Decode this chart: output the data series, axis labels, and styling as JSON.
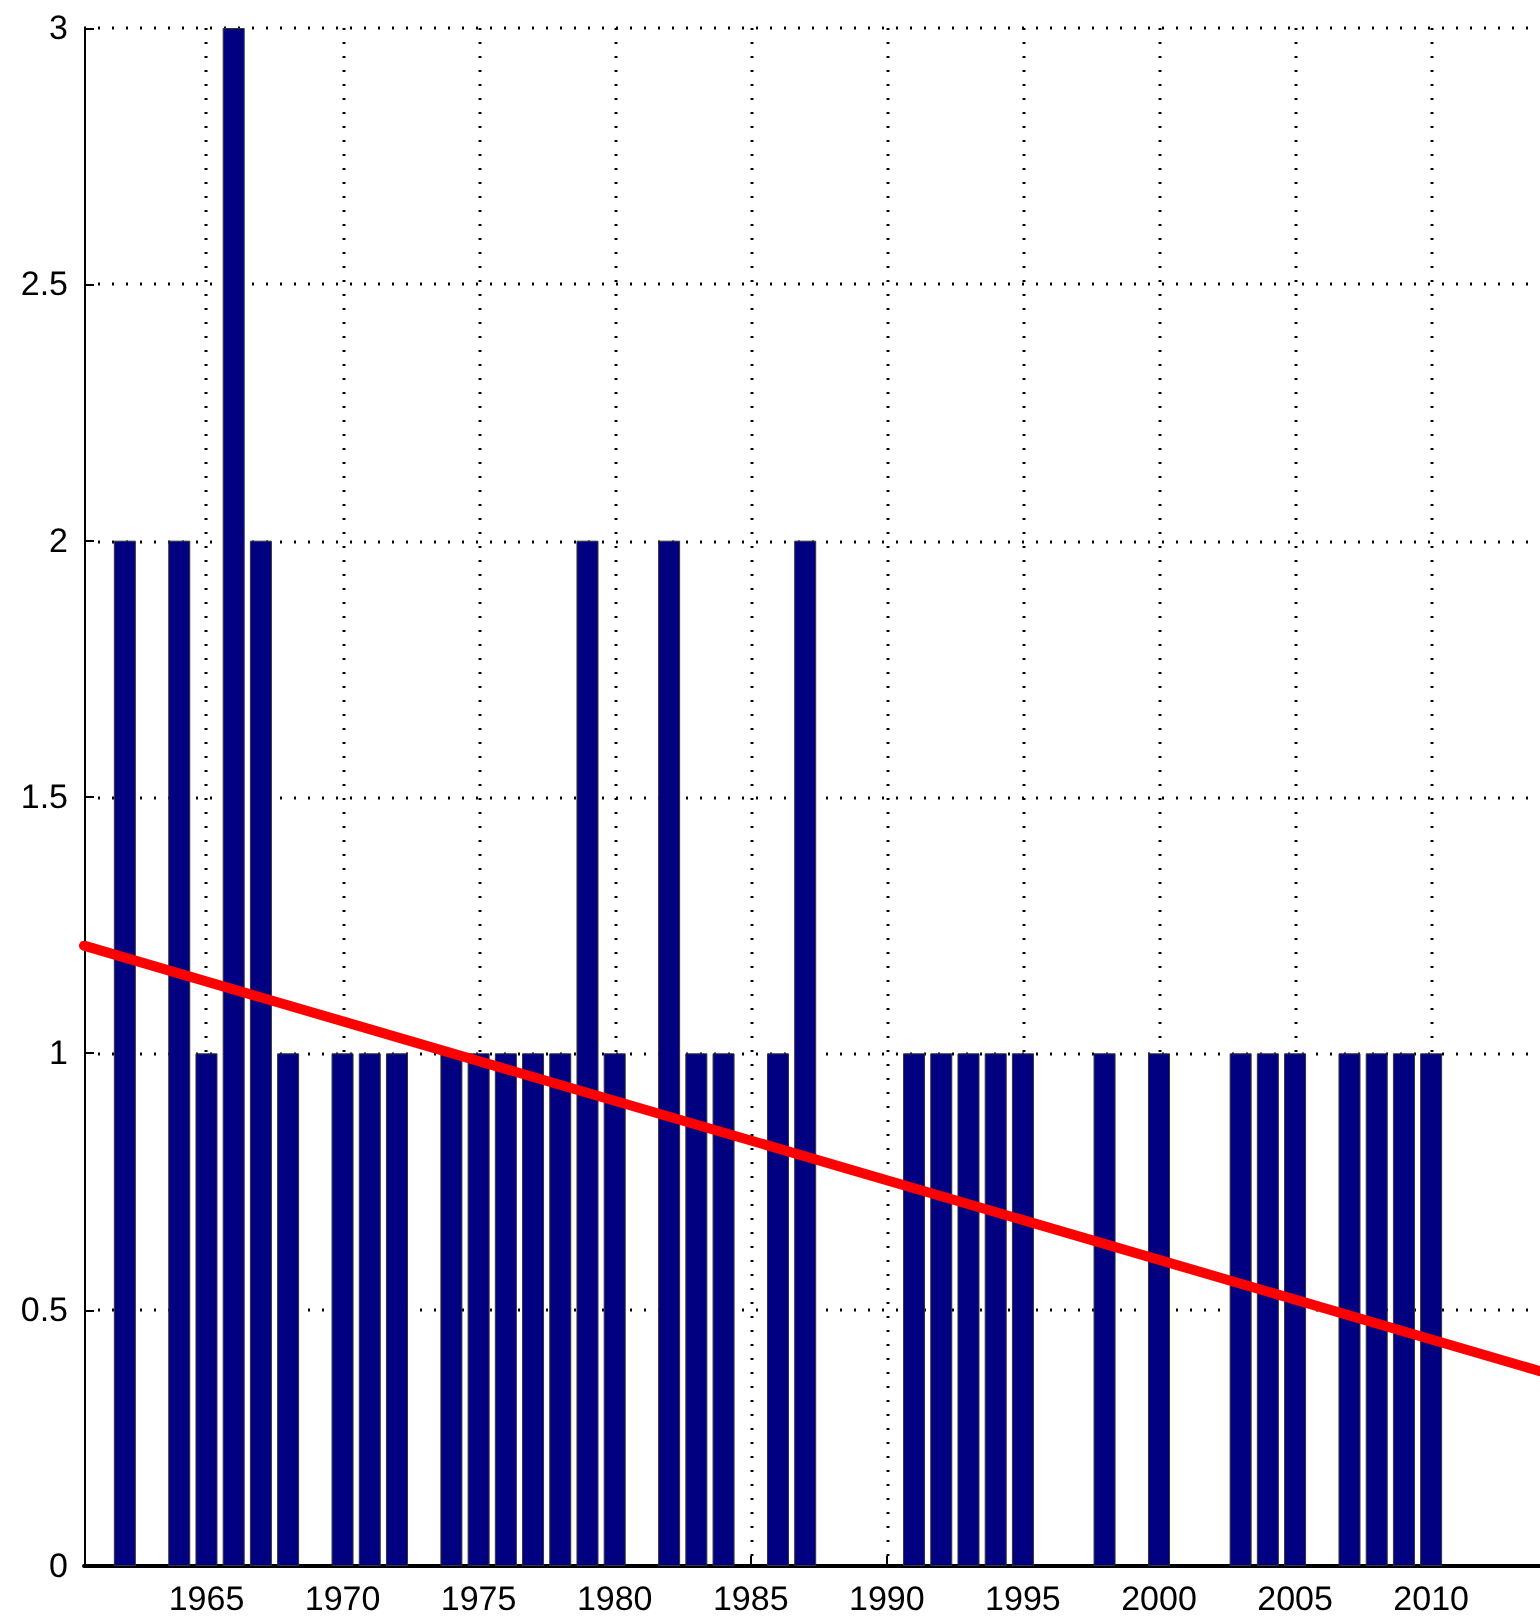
{
  "chart_data": {
    "type": "bar",
    "x": [
      1962,
      1964,
      1965,
      1966,
      1967,
      1968,
      1970,
      1971,
      1972,
      1974,
      1975,
      1976,
      1977,
      1978,
      1979,
      1980,
      1982,
      1983,
      1984,
      1986,
      1987,
      1991,
      1992,
      1993,
      1994,
      1995,
      1998,
      2000,
      2003,
      2004,
      2005,
      2007,
      2008,
      2009,
      2010
    ],
    "series": [
      {
        "color": "#000080",
        "values": [
          2,
          2,
          1,
          3,
          2,
          1,
          1,
          1,
          1,
          1,
          1,
          1,
          1,
          1,
          2,
          1,
          2,
          1,
          1,
          1,
          2,
          1,
          1,
          1,
          1,
          1,
          1,
          1,
          1,
          1,
          1,
          1,
          1,
          1,
          1
        ]
      },
      {
        "type": "line",
        "color": "#ff0000",
        "x": [
          1960.5,
          2014
        ],
        "values": [
          1.21,
          0.38
        ]
      }
    ],
    "xlim": [
      1960.5,
      2014
    ],
    "xticks": [
      1965,
      1970,
      1975,
      1980,
      1985,
      1990,
      1995,
      2000,
      2005,
      2010
    ],
    "ylim": [
      0,
      3
    ],
    "yticks": [
      0,
      0.5,
      1,
      1.5,
      2,
      2.5,
      3
    ],
    "grid": true,
    "marker": "none",
    "line_style": "solid"
  }
}
